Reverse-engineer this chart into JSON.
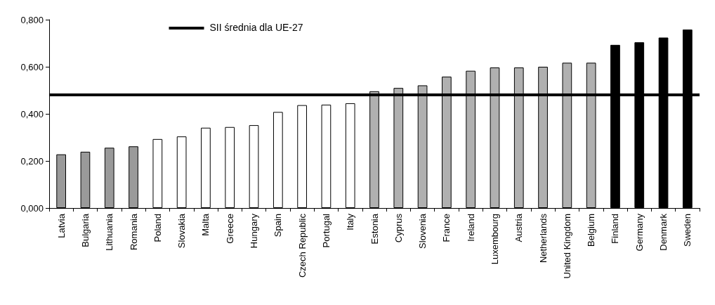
{
  "chart_data": {
    "type": "bar",
    "categories": [
      "Latvia",
      "Bulgaria",
      "Lithuania",
      "Romania",
      "Poland",
      "Slovakia",
      "Malta",
      "Greece",
      "Hungary",
      "Spain",
      "Czech Republic",
      "Portugal",
      "Italy",
      "Estonia",
      "Cyprus",
      "Slovenia",
      "France",
      "Ireland",
      "Luxembourg",
      "Austria",
      "Netherlands",
      "United Kingdom",
      "Belgium",
      "Finland",
      "Germany",
      "Denmark",
      "Sweden"
    ],
    "values": [
      0.228,
      0.239,
      0.256,
      0.262,
      0.293,
      0.304,
      0.341,
      0.344,
      0.352,
      0.408,
      0.437,
      0.439,
      0.445,
      0.496,
      0.51,
      0.521,
      0.558,
      0.583,
      0.597,
      0.597,
      0.6,
      0.617,
      0.617,
      0.693,
      0.704,
      0.724,
      0.758
    ],
    "colors": [
      "#9a9a9a",
      "#9a9a9a",
      "#9a9a9a",
      "#9a9a9a",
      "#ffffff",
      "#ffffff",
      "#ffffff",
      "#ffffff",
      "#ffffff",
      "#ffffff",
      "#ffffff",
      "#ffffff",
      "#ffffff",
      "#b0b0b0",
      "#b0b0b0",
      "#b0b0b0",
      "#b0b0b0",
      "#b0b0b0",
      "#b0b0b0",
      "#b0b0b0",
      "#b0b0b0",
      "#b0b0b0",
      "#b0b0b0",
      "#000000",
      "#000000",
      "#000000",
      "#000000"
    ],
    "ylim": [
      0,
      0.8
    ],
    "yticks": [
      {
        "value": 0,
        "label": "0,000"
      },
      {
        "value": 0.2,
        "label": "0,200"
      },
      {
        "value": 0.4,
        "label": "0,400"
      },
      {
        "value": 0.6,
        "label": "0,600"
      },
      {
        "value": 0.8,
        "label": "0,800"
      }
    ],
    "grid": false,
    "ref_lines": [
      {
        "axis": "y",
        "value": 0.48,
        "label": "SII średnia dla UE-27",
        "color": "#000000",
        "line_style": "solid"
      }
    ]
  }
}
